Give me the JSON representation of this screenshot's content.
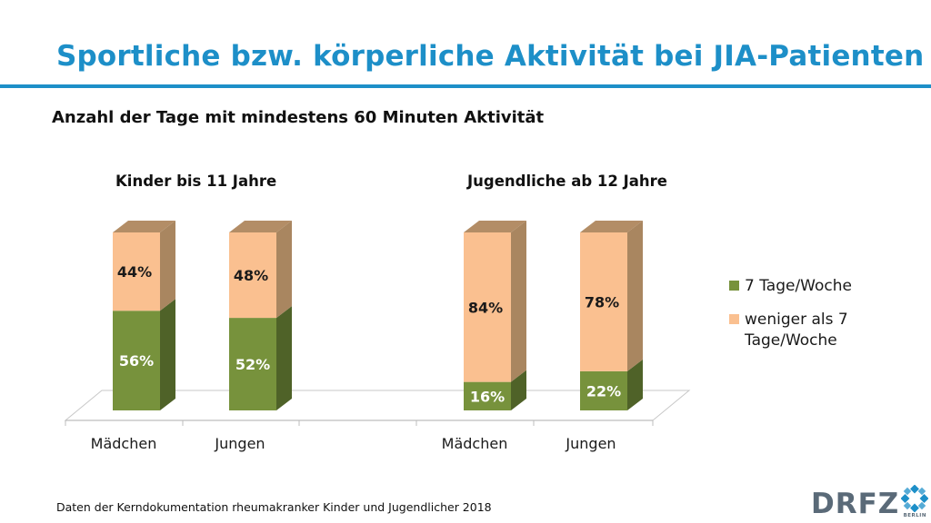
{
  "header": {
    "title": "Sportliche bzw. körperliche Aktivität bei JIA-Patienten"
  },
  "chart_data": {
    "type": "bar",
    "subtitle": "Anzahl der Tage mit mindestens 60 Minuten Aktivität",
    "stacked": true,
    "groups": [
      "Kinder bis 11 Jahre",
      "Jugendliche ab 12 Jahre"
    ],
    "categories": [
      "Mädchen",
      "Jungen",
      "Mädchen",
      "Jungen"
    ],
    "category_group": [
      0,
      0,
      1,
      1
    ],
    "series": [
      {
        "name": "7 Tage/Woche",
        "values": [
          56,
          52,
          16,
          22
        ],
        "labels": [
          "56%",
          "52%",
          "16%",
          "22%"
        ],
        "color": "#77923c"
      },
      {
        "name": "weniger als 7 Tage/Woche",
        "values": [
          44,
          48,
          84,
          78
        ],
        "labels": [
          "44%",
          "48%",
          "84%",
          "78%"
        ],
        "color": "#fac090"
      }
    ],
    "ylim": [
      0,
      100
    ],
    "legend_position": "right"
  },
  "legend": {
    "items": [
      {
        "text": "7 Tage/Woche",
        "color": "#77923c"
      },
      {
        "text": "weniger als 7 Tage/Woche",
        "color": "#fac090"
      }
    ]
  },
  "footer": {
    "source": "Daten der Kerndokumentation rheumakranker Kinder und Jugendlicher 2018"
  },
  "logo": {
    "wordmark": "DRFZ",
    "subtext": "BERLIN"
  },
  "colors": {
    "accent": "#1d8fc8",
    "green_side": "#4f6228",
    "orange_side": "#a98660",
    "orange_top": "#b38d66"
  }
}
